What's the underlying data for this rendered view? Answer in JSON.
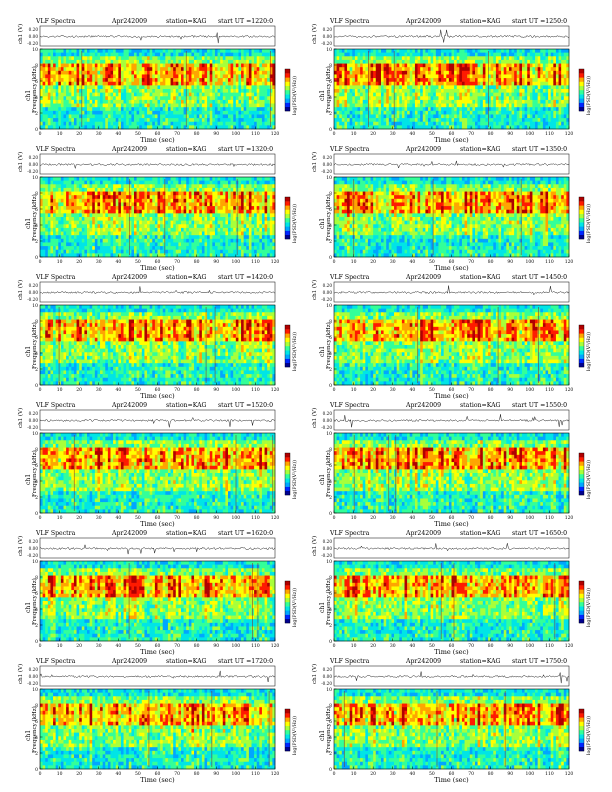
{
  "colors": {
    "palette": [
      "#00008f",
      "#0026ff",
      "#00a6ff",
      "#00e5e6",
      "#33ff99",
      "#a8ff3a",
      "#ffff00",
      "#ffa500",
      "#ff1a00",
      "#b00000"
    ]
  },
  "chart_data": [
    {
      "type": "heatmap",
      "title": "VLF Spectra",
      "date": "Apr242009",
      "station": "station=KAG",
      "start": "start UT =1220:0",
      "ylabel": "Frequency (kHz)",
      "xlabel": "Time (sec)",
      "trace_label": "ch1 (V)",
      "trace_ticks": [
        "0.20",
        "0.00",
        "-0.20"
      ],
      "channel": "ch1",
      "colorbar_label": "log(PSD(V²/Hz))",
      "x_ticks": [
        0,
        10,
        20,
        30,
        40,
        50,
        60,
        70,
        80,
        90,
        100,
        110,
        120
      ],
      "y_ticks": [
        0,
        2,
        4,
        6,
        8,
        10
      ],
      "xlim": [
        0,
        120
      ],
      "ylim": [
        0,
        10
      ]
    },
    {
      "type": "heatmap",
      "title": "VLF Spectra",
      "date": "Apr242009",
      "station": "station=KAG",
      "start": "start UT =1250:0",
      "ylabel": "Frequency (kHz)",
      "xlabel": "Time (sec)",
      "trace_label": "ch1 (V)",
      "trace_ticks": [
        "0.20",
        "0.00",
        "-0.20"
      ],
      "channel": "ch1",
      "colorbar_label": "log(PSD(V²/Hz))",
      "x_ticks": [
        0,
        10,
        20,
        30,
        40,
        50,
        60,
        70,
        80,
        90,
        100,
        110,
        120
      ],
      "y_ticks": [
        0,
        2,
        4,
        6,
        8,
        10
      ],
      "xlim": [
        0,
        120
      ],
      "ylim": [
        0,
        10
      ]
    },
    {
      "type": "heatmap",
      "title": "VLF Spectra",
      "date": "Apr242009",
      "station": "station=KAG",
      "start": "start UT =1320:0",
      "ylabel": "Frequency (kHz)",
      "xlabel": "Time (sec)",
      "trace_label": "ch1 (V)",
      "trace_ticks": [
        "0.20",
        "0.00",
        "-0.20"
      ],
      "channel": "ch1",
      "colorbar_label": "log(PSD(V²/Hz))",
      "x_ticks": [
        0,
        10,
        20,
        30,
        40,
        50,
        60,
        70,
        80,
        90,
        100,
        110,
        120
      ],
      "y_ticks": [
        0,
        2,
        4,
        6,
        8,
        10
      ],
      "xlim": [
        0,
        120
      ],
      "ylim": [
        0,
        10
      ]
    },
    {
      "type": "heatmap",
      "title": "VLF Spectra",
      "date": "Apr242009",
      "station": "station=KAG",
      "start": "start UT =1350:0",
      "ylabel": "Frequency (kHz)",
      "xlabel": "Time (sec)",
      "trace_label": "ch1 (V)",
      "trace_ticks": [
        "0.20",
        "0.00",
        "-0.20"
      ],
      "channel": "ch1",
      "colorbar_label": "log(PSD(V²/Hz))",
      "x_ticks": [
        0,
        10,
        20,
        30,
        40,
        50,
        60,
        70,
        80,
        90,
        100,
        110,
        120
      ],
      "y_ticks": [
        0,
        2,
        4,
        6,
        8,
        10
      ],
      "xlim": [
        0,
        120
      ],
      "ylim": [
        0,
        10
      ]
    },
    {
      "type": "heatmap",
      "title": "VLF Spectra",
      "date": "Apr242009",
      "station": "station=KAG",
      "start": "start UT =1420:0",
      "ylabel": "Frequency (kHz)",
      "xlabel": "Time (sec)",
      "trace_label": "ch1 (V)",
      "trace_ticks": [
        "0.20",
        "0.00",
        "-0.20"
      ],
      "channel": "ch1",
      "colorbar_label": "log(PSD(V²/Hz))",
      "x_ticks": [
        0,
        10,
        20,
        30,
        40,
        50,
        60,
        70,
        80,
        90,
        100,
        110,
        120
      ],
      "y_ticks": [
        0,
        2,
        4,
        6,
        8,
        10
      ],
      "xlim": [
        0,
        120
      ],
      "ylim": [
        0,
        10
      ]
    },
    {
      "type": "heatmap",
      "title": "VLF Spectra",
      "date": "Apr242009",
      "station": "station=KAG",
      "start": "start UT =1450:0",
      "ylabel": "Frequency (kHz)",
      "xlabel": "Time (sec)",
      "trace_label": "ch1 (V)",
      "trace_ticks": [
        "0.20",
        "0.00",
        "-0.20"
      ],
      "channel": "ch1",
      "colorbar_label": "log(PSD(V²/Hz))",
      "x_ticks": [
        0,
        10,
        20,
        30,
        40,
        50,
        60,
        70,
        80,
        90,
        100,
        110,
        120
      ],
      "y_ticks": [
        0,
        2,
        4,
        6,
        8,
        10
      ],
      "xlim": [
        0,
        120
      ],
      "ylim": [
        0,
        10
      ]
    },
    {
      "type": "heatmap",
      "title": "VLF Spectra",
      "date": "Apr242009",
      "station": "station=KAG",
      "start": "start UT =1520:0",
      "ylabel": "Frequency (kHz)",
      "xlabel": "Time (sec)",
      "trace_label": "ch1 (V)",
      "trace_ticks": [
        "0.20",
        "0.00",
        "-0.20"
      ],
      "channel": "ch1",
      "colorbar_label": "log(PSD(V²/Hz))",
      "x_ticks": [
        0,
        10,
        20,
        30,
        40,
        50,
        60,
        70,
        80,
        90,
        100,
        110,
        120
      ],
      "y_ticks": [
        0,
        2,
        4,
        6,
        8,
        10
      ],
      "xlim": [
        0,
        120
      ],
      "ylim": [
        0,
        10
      ]
    },
    {
      "type": "heatmap",
      "title": "VLF Spectra",
      "date": "Apr242009",
      "station": "station=KAG",
      "start": "start UT =1550:0",
      "ylabel": "Frequency (kHz)",
      "xlabel": "Time (sec)",
      "trace_label": "ch1 (V)",
      "trace_ticks": [
        "0.20",
        "0.00",
        "-0.20"
      ],
      "channel": "ch1",
      "colorbar_label": "log(PSD(V²/Hz))",
      "x_ticks": [
        0,
        10,
        20,
        30,
        40,
        50,
        60,
        70,
        80,
        90,
        100,
        110,
        120
      ],
      "y_ticks": [
        0,
        2,
        4,
        6,
        8,
        10
      ],
      "xlim": [
        0,
        120
      ],
      "ylim": [
        0,
        10
      ]
    },
    {
      "type": "heatmap",
      "title": "VLF Spectra",
      "date": "Apr242009",
      "station": "station=KAG",
      "start": "start UT =1620:0",
      "ylabel": "Frequency (kHz)",
      "xlabel": "Time (sec)",
      "trace_label": "ch1 (V)",
      "trace_ticks": [
        "0.20",
        "0.00",
        "-0.20"
      ],
      "channel": "ch1",
      "colorbar_label": "log(PSD(V²/Hz))",
      "x_ticks": [
        0,
        10,
        20,
        30,
        40,
        50,
        60,
        70,
        80,
        90,
        100,
        110,
        120
      ],
      "y_ticks": [
        0,
        2,
        4,
        6,
        8,
        10
      ],
      "xlim": [
        0,
        120
      ],
      "ylim": [
        0,
        10
      ]
    },
    {
      "type": "heatmap",
      "title": "VLF Spectra",
      "date": "Apr242009",
      "station": "station=KAG",
      "start": "start UT =1650:0",
      "ylabel": "Frequency (kHz)",
      "xlabel": "Time (sec)",
      "trace_label": "ch1 (V)",
      "trace_ticks": [
        "0.20",
        "0.00",
        "-0.20"
      ],
      "channel": "ch1",
      "colorbar_label": "log(PSD(V²/Hz))",
      "x_ticks": [
        0,
        10,
        20,
        30,
        40,
        50,
        60,
        70,
        80,
        90,
        100,
        110,
        120
      ],
      "y_ticks": [
        0,
        2,
        4,
        6,
        8,
        10
      ],
      "xlim": [
        0,
        120
      ],
      "ylim": [
        0,
        10
      ]
    },
    {
      "type": "heatmap",
      "title": "VLF Spectra",
      "date": "Apr242009",
      "station": "station=KAG",
      "start": "start UT =1720:0",
      "ylabel": "Frequency (kHz)",
      "xlabel": "Time (sec)",
      "trace_label": "ch1 (V)",
      "trace_ticks": [
        "0.20",
        "0.00",
        "-0.20"
      ],
      "channel": "ch1",
      "colorbar_label": "log(PSD(V²/Hz))",
      "x_ticks": [
        0,
        10,
        20,
        30,
        40,
        50,
        60,
        70,
        80,
        90,
        100,
        110,
        120
      ],
      "y_ticks": [
        0,
        2,
        4,
        6,
        8,
        10
      ],
      "xlim": [
        0,
        120
      ],
      "ylim": [
        0,
        10
      ]
    },
    {
      "type": "heatmap",
      "title": "VLF Spectra",
      "date": "Apr242009",
      "station": "station=KAG",
      "start": "start UT =1750:0",
      "ylabel": "Frequency (kHz)",
      "xlabel": "Time (sec)",
      "trace_label": "ch1 (V)",
      "trace_ticks": [
        "0.20",
        "0.00",
        "-0.20"
      ],
      "channel": "ch1",
      "colorbar_label": "log(PSD(V²/Hz))",
      "x_ticks": [
        0,
        10,
        20,
        30,
        40,
        50,
        60,
        70,
        80,
        90,
        100,
        110,
        120
      ],
      "y_ticks": [
        0,
        2,
        4,
        6,
        8,
        10
      ],
      "xlim": [
        0,
        120
      ],
      "ylim": [
        0,
        10
      ]
    }
  ]
}
